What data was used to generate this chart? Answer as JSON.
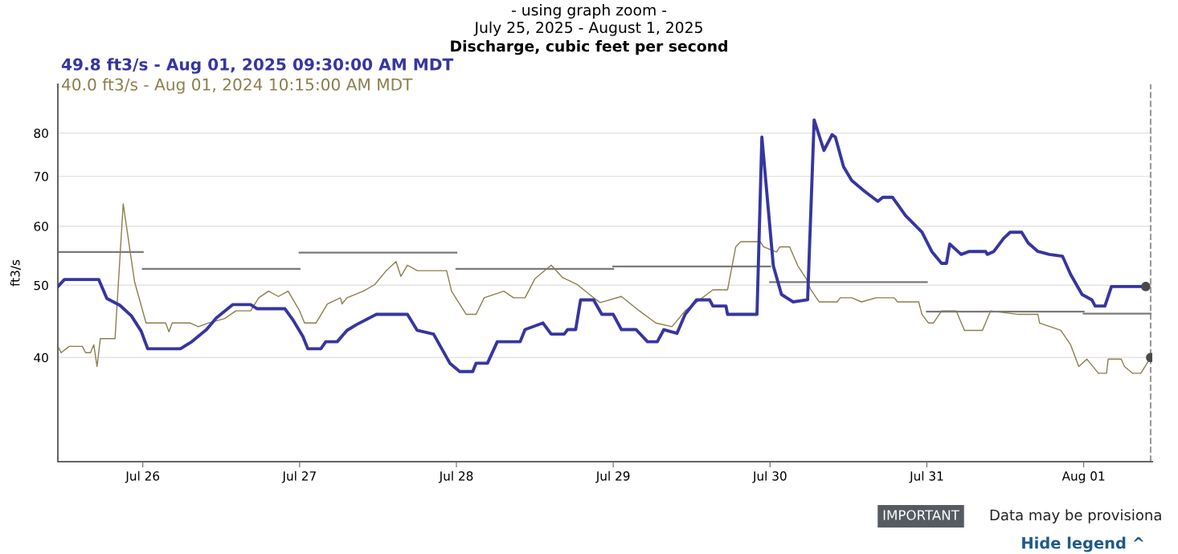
{
  "chart_data": {
    "type": "line",
    "subtitle": "- using graph zoom -\nJuly 25, 2025 - August 1, 2025",
    "title": "Discharge, cubic feet per second",
    "ylabel": "ft3/s",
    "log": true,
    "grid": "y",
    "legend": "top left",
    "line_style": "solid",
    "xlim": [
      "2025-07-25T11:00",
      "2025-08-01T10:30"
    ],
    "xticks": [
      {
        "value": "2025-07-26",
        "label": "Jul 26"
      },
      {
        "value": "2025-07-27",
        "label": "Jul 27"
      },
      {
        "value": "2025-07-28",
        "label": "Jul 28"
      },
      {
        "value": "2025-07-29",
        "label": "Jul 29"
      },
      {
        "value": "2025-07-30",
        "label": "Jul 30"
      },
      {
        "value": "2025-07-31",
        "label": "Jul 31"
      },
      {
        "value": "2025-08-01",
        "label": "Aug 01"
      }
    ],
    "ylim": [
      29,
      93
    ],
    "yticks": [
      40,
      50,
      60,
      70,
      80
    ],
    "series": [
      {
        "name": "49.8 ft3/s - Aug 01, 2025 09:30:00 AM MDT",
        "color": "#3636a0",
        "x": [
          "2025-07-25T11:00",
          "2025-07-25T12:00",
          "2025-07-25T17:15",
          "2025-07-25T18:30",
          "2025-07-25T20:30",
          "2025-07-25T22:15",
          "2025-07-25T23:45",
          "2025-07-26T00:45",
          "2025-07-26T05:45",
          "2025-07-26T07:30",
          "2025-07-26T09:45",
          "2025-07-26T11:15",
          "2025-07-26T13:45",
          "2025-07-26T16:30",
          "2025-07-26T17:30",
          "2025-07-26T21:45",
          "2025-07-26T23:00",
          "2025-07-27T00:30",
          "2025-07-27T01:15",
          "2025-07-27T03:15",
          "2025-07-27T04:00",
          "2025-07-27T05:45",
          "2025-07-27T07:15",
          "2025-07-27T08:45",
          "2025-07-27T11:45",
          "2025-07-27T16:30",
          "2025-07-27T18:00",
          "2025-07-27T20:30",
          "2025-07-27T23:00",
          "2025-07-28T00:30",
          "2025-07-28T02:30",
          "2025-07-28T03:00",
          "2025-07-28T04:45",
          "2025-07-28T06:15",
          "2025-07-28T09:45",
          "2025-07-28T10:30",
          "2025-07-28T13:15",
          "2025-07-28T14:30",
          "2025-07-28T16:30",
          "2025-07-28T17:00",
          "2025-07-28T18:15",
          "2025-07-28T19:00",
          "2025-07-28T21:00",
          "2025-07-28T22:15",
          "2025-07-29T00:00",
          "2025-07-29T01:15",
          "2025-07-29T03:30",
          "2025-07-29T05:15",
          "2025-07-29T06:45",
          "2025-07-29T07:45",
          "2025-07-29T09:45",
          "2025-07-29T11:00",
          "2025-07-29T12:45",
          "2025-07-29T14:45",
          "2025-07-29T15:15",
          "2025-07-29T17:15",
          "2025-07-29T17:30",
          "2025-07-29T22:00",
          "2025-07-29T22:45",
          "2025-07-30T00:30",
          "2025-07-30T01:45",
          "2025-07-30T03:30",
          "2025-07-30T05:45",
          "2025-07-30T06:45",
          "2025-07-30T08:15",
          "2025-07-30T09:30",
          "2025-07-30T10:00",
          "2025-07-30T11:15",
          "2025-07-30T12:30",
          "2025-07-30T14:30",
          "2025-07-30T16:30",
          "2025-07-30T17:15",
          "2025-07-30T18:45",
          "2025-07-30T20:45",
          "2025-07-30T23:15",
          "2025-07-31T00:45",
          "2025-07-31T02:15",
          "2025-07-31T03:00",
          "2025-07-31T03:30",
          "2025-07-31T05:15",
          "2025-07-31T06:30",
          "2025-07-31T09:00",
          "2025-07-31T09:15",
          "2025-07-31T10:15",
          "2025-07-31T11:45",
          "2025-07-31T12:45",
          "2025-07-31T14:30",
          "2025-07-31T15:30",
          "2025-07-31T17:00",
          "2025-07-31T18:45",
          "2025-07-31T20:45",
          "2025-07-31T22:00",
          "2025-07-31T23:45",
          "2025-08-01T01:15",
          "2025-08-01T01:45",
          "2025-08-01T03:15",
          "2025-08-01T04:15",
          "2025-08-01T09:30"
        ],
        "values": [
          49.8,
          50.9,
          50.9,
          48,
          47,
          45.5,
          43.4,
          41.1,
          41.1,
          42,
          43.6,
          45.2,
          47.1,
          47.1,
          46.5,
          46.5,
          44.9,
          42.7,
          41.1,
          41.1,
          42,
          42,
          43.5,
          44.3,
          45.7,
          45.7,
          43.5,
          43,
          39.3,
          38.3,
          38.3,
          39.3,
          39.3,
          42,
          42,
          43.6,
          44.5,
          43,
          43,
          43.6,
          43.6,
          47.8,
          47.8,
          45.7,
          45.7,
          43.6,
          43.6,
          42,
          42,
          43.6,
          43.1,
          45.7,
          47.8,
          47.8,
          46.9,
          46.9,
          45.7,
          45.7,
          79,
          53.1,
          48.6,
          47.5,
          47.8,
          83.3,
          75.8,
          79.6,
          79,
          72.1,
          69.1,
          66.8,
          64.8,
          65.6,
          65.6,
          62,
          58.9,
          55.5,
          53.5,
          53.5,
          56.8,
          55,
          55.5,
          55.5,
          55,
          55.5,
          57.8,
          58.9,
          58.9,
          57,
          55.5,
          55,
          54.7,
          51.7,
          48.6,
          47.8,
          46.9,
          46.9,
          49.8,
          49.8
        ]
      },
      {
        "name": "40.0 ft3/s - Aug 01, 2024 10:15:00 AM MDT",
        "color": "#8c7e4c",
        "x": [
          "2025-07-25T11:00",
          "2025-07-25T11:30",
          "2025-07-25T12:45",
          "2025-07-25T14:45",
          "2025-07-25T15:15",
          "2025-07-25T16:00",
          "2025-07-25T16:30",
          "2025-07-25T17:00",
          "2025-07-25T17:30",
          "2025-07-25T18:00",
          "2025-07-25T19:45",
          "2025-07-25T21:00",
          "2025-07-25T22:45",
          "2025-07-26T00:30",
          "2025-07-26T03:30",
          "2025-07-26T04:00",
          "2025-07-26T04:30",
          "2025-07-26T07:15",
          "2025-07-26T08:30",
          "2025-07-26T10:00",
          "2025-07-26T12:30",
          "2025-07-26T14:15",
          "2025-07-26T16:30",
          "2025-07-26T17:45",
          "2025-07-26T19:15",
          "2025-07-26T20:45",
          "2025-07-26T22:15",
          "2025-07-27T00:00",
          "2025-07-27T00:45",
          "2025-07-27T02:30",
          "2025-07-27T04:15",
          "2025-07-27T06:15",
          "2025-07-27T06:30",
          "2025-07-27T07:15",
          "2025-07-27T09:45",
          "2025-07-27T11:30",
          "2025-07-27T13:15",
          "2025-07-27T14:45",
          "2025-07-27T15:30",
          "2025-07-27T16:30",
          "2025-07-27T18:00",
          "2025-07-27T22:30",
          "2025-07-27T23:15",
          "2025-07-28T01:30",
          "2025-07-28T03:00",
          "2025-07-28T04:15",
          "2025-07-28T07:15",
          "2025-07-28T08:45",
          "2025-07-28T10:30",
          "2025-07-28T12:00",
          "2025-07-28T14:30",
          "2025-07-28T16:15",
          "2025-07-28T18:30",
          "2025-07-28T20:45",
          "2025-07-28T22:00",
          "2025-07-29T01:15",
          "2025-07-29T04:00",
          "2025-07-29T06:30",
          "2025-07-29T09:00",
          "2025-07-29T11:00",
          "2025-07-29T15:15",
          "2025-07-29T17:30",
          "2025-07-29T18:45",
          "2025-07-29T19:30",
          "2025-07-29T22:30",
          "2025-07-29T23:00",
          "2025-07-30T01:00",
          "2025-07-30T01:30",
          "2025-07-30T03:00",
          "2025-07-30T04:15",
          "2025-07-30T05:30",
          "2025-07-30T06:15",
          "2025-07-30T07:30",
          "2025-07-30T10:15",
          "2025-07-30T10:45",
          "2025-07-30T12:30",
          "2025-07-30T14:00",
          "2025-07-30T16:15",
          "2025-07-30T19:00",
          "2025-07-30T19:30",
          "2025-07-30T22:45",
          "2025-07-30T23:15",
          "2025-07-31T00:15",
          "2025-07-31T01:00",
          "2025-07-31T02:15",
          "2025-07-31T04:30",
          "2025-07-31T05:45",
          "2025-07-31T08:30",
          "2025-07-31T09:45",
          "2025-07-31T14:00",
          "2025-07-31T17:00",
          "2025-07-31T17:15",
          "2025-07-31T20:30",
          "2025-07-31T22:00",
          "2025-07-31T23:15",
          "2025-08-01T00:30",
          "2025-08-01T02:15",
          "2025-08-01T03:30",
          "2025-08-01T03:45",
          "2025-08-01T05:45",
          "2025-08-01T06:15",
          "2025-08-01T07:30",
          "2025-08-01T08:45",
          "2025-08-01T10:15"
        ],
        "values": [
          41.4,
          40.6,
          41.4,
          41.4,
          40.6,
          40.6,
          41.6,
          38.9,
          42.4,
          42.4,
          42.4,
          64.3,
          50.5,
          44.5,
          44.5,
          43.3,
          44.5,
          44.5,
          44,
          44.5,
          45.1,
          46.2,
          46.2,
          48.1,
          49.1,
          48.3,
          49.1,
          46.2,
          44.5,
          44.5,
          47.2,
          48.1,
          47.2,
          48.1,
          49.1,
          50.1,
          52.3,
          53.8,
          51.4,
          53.2,
          52.3,
          52.3,
          49.1,
          45.7,
          45.7,
          48.1,
          49.1,
          48.1,
          48.1,
          51,
          53.2,
          51.2,
          50.1,
          48.3,
          47.4,
          48.3,
          46.2,
          44.5,
          44,
          46.2,
          49.3,
          49.3,
          56.3,
          57.2,
          57.2,
          56.3,
          55.4,
          56.3,
          56.3,
          53.1,
          51.1,
          49.3,
          47.5,
          47.5,
          48.1,
          48.1,
          47.5,
          48.1,
          48.1,
          47.5,
          47.5,
          45.7,
          44.5,
          44.5,
          46.2,
          46.2,
          43.5,
          43.5,
          46.2,
          45.7,
          45.7,
          44.5,
          43.5,
          41.6,
          38.9,
          39.8,
          38.1,
          38.1,
          39.8,
          39.8,
          38.9,
          38.1,
          38.1,
          40.0
        ]
      },
      {
        "color": "#7a7a7a",
        "x": [
          "2025-07-25T11:00",
          "2025-07-26T00:00"
        ],
        "values": [
          55.4,
          55.4
        ]
      },
      {
        "color": "#7a7a7a",
        "x": [
          "2025-07-26T00:00",
          "2025-07-27T00:00"
        ],
        "values": [
          52.6,
          52.6
        ]
      },
      {
        "color": "#7a7a7a",
        "x": [
          "2025-07-27T00:00",
          "2025-07-28T00:00"
        ],
        "values": [
          55.3,
          55.3
        ]
      },
      {
        "color": "#7a7a7a",
        "x": [
          "2025-07-28T00:00",
          "2025-07-29T00:00"
        ],
        "values": [
          52.6,
          52.6
        ]
      },
      {
        "color": "#7a7a7a",
        "x": [
          "2025-07-29T00:00",
          "2025-07-30T00:00"
        ],
        "values": [
          53.0,
          53.0
        ]
      },
      {
        "color": "#7a7a7a",
        "x": [
          "2025-07-30T00:00",
          "2025-07-31T00:00"
        ],
        "values": [
          50.5,
          50.5
        ]
      },
      {
        "color": "#7a7a7a",
        "x": [
          "2025-07-31T00:00",
          "2025-08-01T00:00"
        ],
        "values": [
          46.1,
          46.1
        ]
      },
      {
        "color": "#7a7a7a",
        "x": [
          "2025-08-01T00:00",
          "2025-08-01T10:15"
        ],
        "values": [
          45.8,
          45.8
        ]
      },
      {
        "type": "scatter",
        "color": "#4a4a4a",
        "x": [
          "2025-08-01T09:30",
          "2025-08-01T10:15"
        ],
        "values": [
          49.8,
          40.0
        ]
      }
    ],
    "ref_lines": [
      {
        "axis": "x",
        "value": "2025-08-01T10:15",
        "color": "#9a9a9a",
        "line_style": "dashed"
      }
    ],
    "annotations": [
      "IMPORTANT",
      "Data may be provisiona",
      "Hide legend ^"
    ]
  }
}
